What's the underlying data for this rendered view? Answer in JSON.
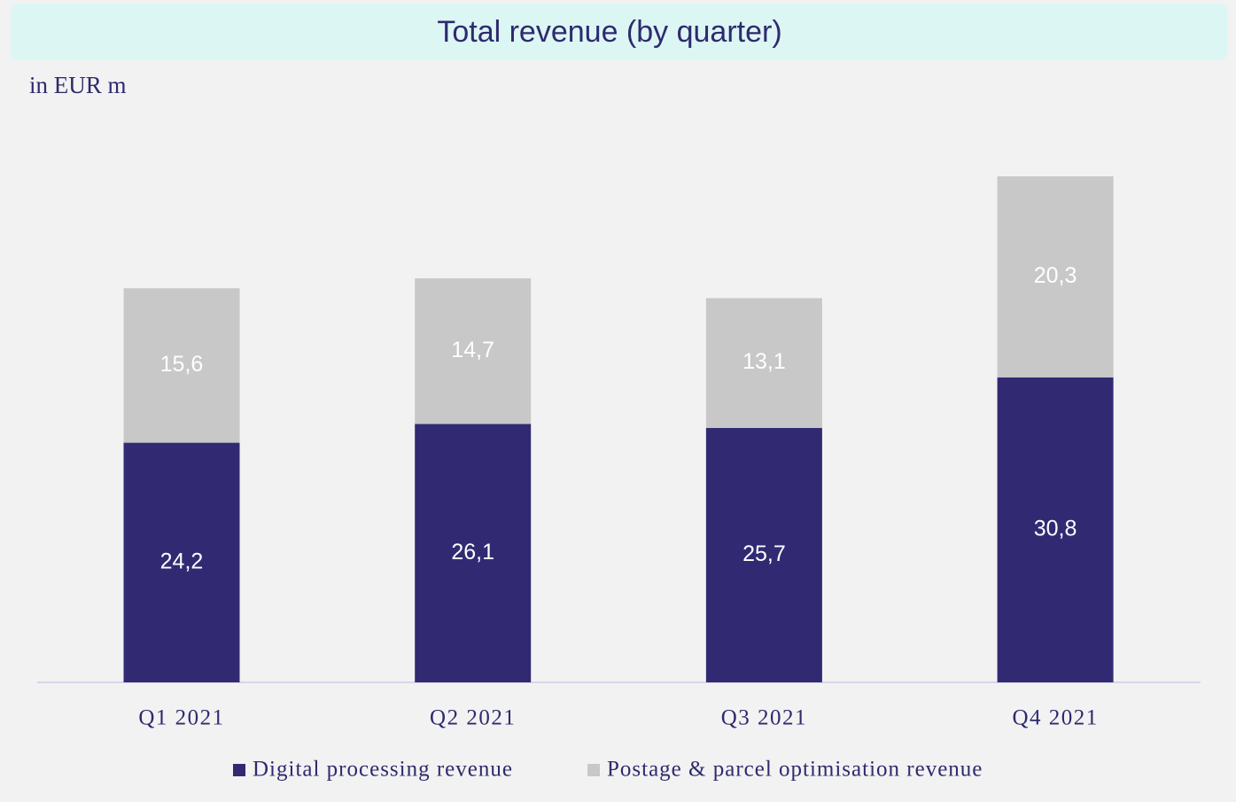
{
  "chart_data": {
    "type": "stacked-bar",
    "title": "Total revenue (by quarter)",
    "subtitle": "in EUR m",
    "categories": [
      "Q1 2021",
      "Q2 2021",
      "Q3 2021",
      "Q4 2021"
    ],
    "series": [
      {
        "name": "Digital processing revenue",
        "color": "#312a73",
        "values": [
          24.2,
          26.1,
          25.7,
          30.8
        ],
        "value_labels": [
          "24,2",
          "26,1",
          "25,7",
          "30,8"
        ]
      },
      {
        "name": "Postage & parcel optimisation revenue",
        "color": "#c8c8c8",
        "values": [
          15.6,
          14.7,
          13.1,
          20.3
        ],
        "value_labels": [
          "15,6",
          "14,7",
          "13,1",
          "20,3"
        ]
      }
    ]
  }
}
